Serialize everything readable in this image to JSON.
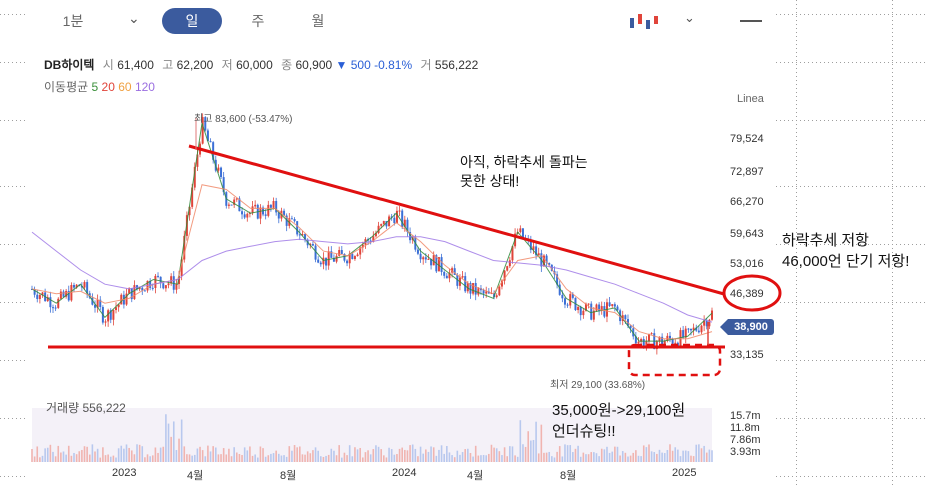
{
  "header": {
    "tabs": [
      "1분",
      "일",
      "주",
      "월"
    ],
    "active_tab": "일"
  },
  "ticker": {
    "name": "DB하이텍",
    "open_label": "시",
    "open": "61,400",
    "high_label": "고",
    "high": "62,200",
    "low_label": "저",
    "low": "60,000",
    "close_label": "종",
    "close": "60,900",
    "change": "▼ 500",
    "change_pct": "-0.81%",
    "volume_label": "거",
    "volume": "556,222"
  },
  "moving_average": {
    "label": "이동평균",
    "periods": [
      "5",
      "20",
      "60",
      "120"
    ],
    "colors": [
      "#3a8f3a",
      "#e0443a",
      "#f0a040",
      "#9a6ee0"
    ]
  },
  "price_axis": {
    "scale_label": "Linea",
    "ticks": [
      "79,524",
      "72,897",
      "66,270",
      "59,643",
      "53,016",
      "46,389",
      "33,135"
    ],
    "current_price": "38,900"
  },
  "volume_panel": {
    "label": "거래량",
    "value": "556,222",
    "ticks": [
      "15.7m",
      "11.8m",
      "7.86m",
      "3.93m"
    ]
  },
  "x_axis": {
    "ticks": [
      "2023",
      "4월",
      "8월",
      "2024",
      "4월",
      "8월",
      "2025"
    ]
  },
  "markers": {
    "high": "최고 83,600 (-53.47%)",
    "low": "최저 29,100 (33.68%)"
  },
  "annotations": {
    "top_line1": "아직, 하락추세 돌파는",
    "top_line2": "못한 상태!",
    "side_line1": "하락추세 저항",
    "side_line2": "46,000언 단기 저항!",
    "bottom_line1": "35,000원->29,100원",
    "bottom_line2": "언더슈팅!!"
  },
  "chart_data": {
    "type": "line",
    "title": "",
    "xlabel": "",
    "ylabel": "",
    "ylim": [
      29000,
      86000
    ],
    "x": [
      "2022-10",
      "2022-11",
      "2022-12",
      "2023-01",
      "2023-02",
      "2023-03",
      "2023-04",
      "2023-05",
      "2023-06",
      "2023-07",
      "2023-08",
      "2023-09",
      "2023-10",
      "2023-11",
      "2023-12",
      "2024-01",
      "2024-02",
      "2024-03",
      "2024-04",
      "2024-05",
      "2024-06",
      "2024-07",
      "2024-08",
      "2024-09",
      "2024-10",
      "2024-11",
      "2024-12",
      "2025-01",
      "2025-02"
    ],
    "series": [
      {
        "name": "5",
        "values": [
          44000,
          41000,
          45000,
          38000,
          43000,
          46000,
          45000,
          79000,
          63000,
          60000,
          61000,
          56000,
          50000,
          51000,
          55000,
          60000,
          52000,
          48000,
          44000,
          42000,
          56000,
          50000,
          42000,
          39000,
          40000,
          33000,
          33000,
          34000,
          38900
        ]
      },
      {
        "name": "20",
        "values": [
          44000,
          43000,
          43500,
          41000,
          42000,
          45000,
          46000,
          66000,
          65000,
          61000,
          61000,
          57000,
          52000,
          51000,
          54000,
          58000,
          54000,
          49000,
          45000,
          43000,
          50000,
          51000,
          44000,
          40000,
          39000,
          35000,
          33500,
          33500,
          35000
        ]
      },
      {
        "name": "120",
        "values": [
          56000,
          52000,
          48000,
          45000,
          44000,
          45000,
          46000,
          50000,
          52000,
          53000,
          54000,
          54500,
          54000,
          53500,
          54000,
          55000,
          55000,
          54000,
          52000,
          50000,
          49500,
          49000,
          48000,
          46500,
          45000,
          43000,
          41000,
          38500,
          37000
        ]
      }
    ],
    "price_ticks": [
      79524,
      72897,
      66270,
      59643,
      53016,
      46389,
      33135
    ],
    "current_price": 38900,
    "high": 83600,
    "low": 29100,
    "volume": {
      "ticks_m": [
        15.7,
        11.8,
        7.86,
        3.93
      ],
      "last": 556222
    }
  }
}
